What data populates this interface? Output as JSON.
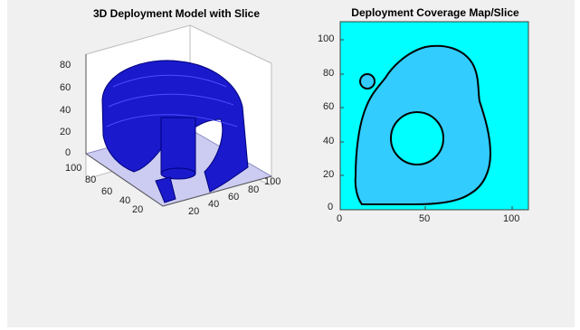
{
  "left_plot": {
    "title": "3D Deployment Model with Slice",
    "z_ticks": [
      "80",
      "60",
      "40",
      "20",
      "0"
    ],
    "x_ticks": [
      "100",
      "80",
      "60",
      "40",
      "20"
    ],
    "y_ticks": [
      "20",
      "40",
      "60",
      "80",
      "100"
    ],
    "surface_color": "#1a1acc",
    "slice_color": "#ccccf2"
  },
  "right_plot": {
    "title": "Deployment Coverage Map/Slice",
    "y_ticks": [
      "100",
      "80",
      "60",
      "40",
      "20",
      "0"
    ],
    "x_ticks": [
      "0",
      "50",
      "100"
    ],
    "background_color": "#00ffff",
    "region_color": "#33ccff"
  },
  "chart_data": [
    {
      "type": "3d-surface",
      "title": "3D Deployment Model with Slice",
      "xlim": [
        0,
        100
      ],
      "ylim": [
        0,
        100
      ],
      "zlim": [
        0,
        80
      ],
      "x_ticks": [
        100,
        80,
        60,
        40,
        20
      ],
      "y_ticks": [
        20,
        40,
        60,
        80,
        100
      ],
      "z_ticks": [
        0,
        20,
        40,
        60,
        80
      ]
    },
    {
      "type": "contour",
      "title": "Deployment Coverage Map/Slice",
      "xlim": [
        0,
        110
      ],
      "ylim": [
        0,
        105
      ],
      "x_ticks": [
        0,
        50,
        100
      ],
      "y_ticks": [
        0,
        20,
        40,
        60,
        80,
        100
      ],
      "hole_center": [
        45,
        40
      ],
      "hole_radius": 15
    }
  ]
}
